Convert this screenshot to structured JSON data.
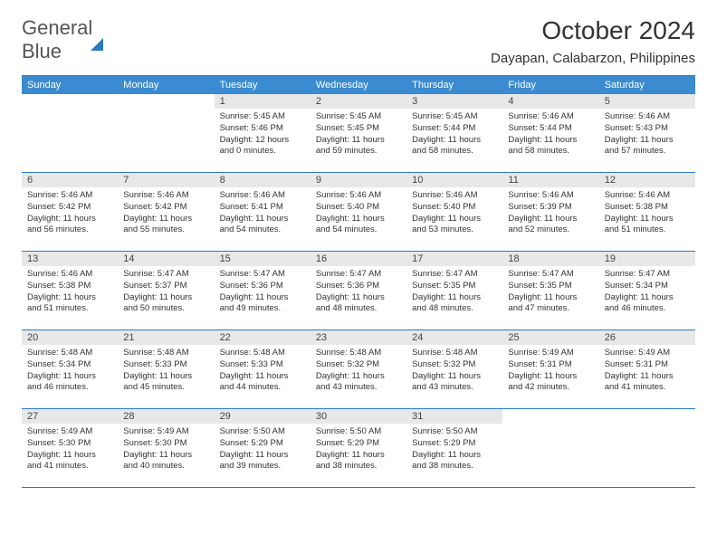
{
  "logo": {
    "word1": "General",
    "word2": "Blue"
  },
  "title": "October 2024",
  "location": "Dayapan, Calabarzon, Philippines",
  "colors": {
    "header_bg": "#3a8bd0",
    "border": "#2d7bc0",
    "daynum_bg": "#e8e8e8",
    "text": "#333333",
    "page_bg": "#ffffff"
  },
  "weekdays": [
    "Sunday",
    "Monday",
    "Tuesday",
    "Wednesday",
    "Thursday",
    "Friday",
    "Saturday"
  ],
  "weeks": [
    [
      {
        "n": "",
        "sr": "",
        "ss": "",
        "dl": ""
      },
      {
        "n": "",
        "sr": "",
        "ss": "",
        "dl": ""
      },
      {
        "n": "1",
        "sr": "Sunrise: 5:45 AM",
        "ss": "Sunset: 5:46 PM",
        "dl": "Daylight: 12 hours and 0 minutes."
      },
      {
        "n": "2",
        "sr": "Sunrise: 5:45 AM",
        "ss": "Sunset: 5:45 PM",
        "dl": "Daylight: 11 hours and 59 minutes."
      },
      {
        "n": "3",
        "sr": "Sunrise: 5:45 AM",
        "ss": "Sunset: 5:44 PM",
        "dl": "Daylight: 11 hours and 58 minutes."
      },
      {
        "n": "4",
        "sr": "Sunrise: 5:46 AM",
        "ss": "Sunset: 5:44 PM",
        "dl": "Daylight: 11 hours and 58 minutes."
      },
      {
        "n": "5",
        "sr": "Sunrise: 5:46 AM",
        "ss": "Sunset: 5:43 PM",
        "dl": "Daylight: 11 hours and 57 minutes."
      }
    ],
    [
      {
        "n": "6",
        "sr": "Sunrise: 5:46 AM",
        "ss": "Sunset: 5:42 PM",
        "dl": "Daylight: 11 hours and 56 minutes."
      },
      {
        "n": "7",
        "sr": "Sunrise: 5:46 AM",
        "ss": "Sunset: 5:42 PM",
        "dl": "Daylight: 11 hours and 55 minutes."
      },
      {
        "n": "8",
        "sr": "Sunrise: 5:46 AM",
        "ss": "Sunset: 5:41 PM",
        "dl": "Daylight: 11 hours and 54 minutes."
      },
      {
        "n": "9",
        "sr": "Sunrise: 5:46 AM",
        "ss": "Sunset: 5:40 PM",
        "dl": "Daylight: 11 hours and 54 minutes."
      },
      {
        "n": "10",
        "sr": "Sunrise: 5:46 AM",
        "ss": "Sunset: 5:40 PM",
        "dl": "Daylight: 11 hours and 53 minutes."
      },
      {
        "n": "11",
        "sr": "Sunrise: 5:46 AM",
        "ss": "Sunset: 5:39 PM",
        "dl": "Daylight: 11 hours and 52 minutes."
      },
      {
        "n": "12",
        "sr": "Sunrise: 5:46 AM",
        "ss": "Sunset: 5:38 PM",
        "dl": "Daylight: 11 hours and 51 minutes."
      }
    ],
    [
      {
        "n": "13",
        "sr": "Sunrise: 5:46 AM",
        "ss": "Sunset: 5:38 PM",
        "dl": "Daylight: 11 hours and 51 minutes."
      },
      {
        "n": "14",
        "sr": "Sunrise: 5:47 AM",
        "ss": "Sunset: 5:37 PM",
        "dl": "Daylight: 11 hours and 50 minutes."
      },
      {
        "n": "15",
        "sr": "Sunrise: 5:47 AM",
        "ss": "Sunset: 5:36 PM",
        "dl": "Daylight: 11 hours and 49 minutes."
      },
      {
        "n": "16",
        "sr": "Sunrise: 5:47 AM",
        "ss": "Sunset: 5:36 PM",
        "dl": "Daylight: 11 hours and 48 minutes."
      },
      {
        "n": "17",
        "sr": "Sunrise: 5:47 AM",
        "ss": "Sunset: 5:35 PM",
        "dl": "Daylight: 11 hours and 48 minutes."
      },
      {
        "n": "18",
        "sr": "Sunrise: 5:47 AM",
        "ss": "Sunset: 5:35 PM",
        "dl": "Daylight: 11 hours and 47 minutes."
      },
      {
        "n": "19",
        "sr": "Sunrise: 5:47 AM",
        "ss": "Sunset: 5:34 PM",
        "dl": "Daylight: 11 hours and 46 minutes."
      }
    ],
    [
      {
        "n": "20",
        "sr": "Sunrise: 5:48 AM",
        "ss": "Sunset: 5:34 PM",
        "dl": "Daylight: 11 hours and 46 minutes."
      },
      {
        "n": "21",
        "sr": "Sunrise: 5:48 AM",
        "ss": "Sunset: 5:33 PM",
        "dl": "Daylight: 11 hours and 45 minutes."
      },
      {
        "n": "22",
        "sr": "Sunrise: 5:48 AM",
        "ss": "Sunset: 5:33 PM",
        "dl": "Daylight: 11 hours and 44 minutes."
      },
      {
        "n": "23",
        "sr": "Sunrise: 5:48 AM",
        "ss": "Sunset: 5:32 PM",
        "dl": "Daylight: 11 hours and 43 minutes."
      },
      {
        "n": "24",
        "sr": "Sunrise: 5:48 AM",
        "ss": "Sunset: 5:32 PM",
        "dl": "Daylight: 11 hours and 43 minutes."
      },
      {
        "n": "25",
        "sr": "Sunrise: 5:49 AM",
        "ss": "Sunset: 5:31 PM",
        "dl": "Daylight: 11 hours and 42 minutes."
      },
      {
        "n": "26",
        "sr": "Sunrise: 5:49 AM",
        "ss": "Sunset: 5:31 PM",
        "dl": "Daylight: 11 hours and 41 minutes."
      }
    ],
    [
      {
        "n": "27",
        "sr": "Sunrise: 5:49 AM",
        "ss": "Sunset: 5:30 PM",
        "dl": "Daylight: 11 hours and 41 minutes."
      },
      {
        "n": "28",
        "sr": "Sunrise: 5:49 AM",
        "ss": "Sunset: 5:30 PM",
        "dl": "Daylight: 11 hours and 40 minutes."
      },
      {
        "n": "29",
        "sr": "Sunrise: 5:50 AM",
        "ss": "Sunset: 5:29 PM",
        "dl": "Daylight: 11 hours and 39 minutes."
      },
      {
        "n": "30",
        "sr": "Sunrise: 5:50 AM",
        "ss": "Sunset: 5:29 PM",
        "dl": "Daylight: 11 hours and 38 minutes."
      },
      {
        "n": "31",
        "sr": "Sunrise: 5:50 AM",
        "ss": "Sunset: 5:29 PM",
        "dl": "Daylight: 11 hours and 38 minutes."
      },
      {
        "n": "",
        "sr": "",
        "ss": "",
        "dl": ""
      },
      {
        "n": "",
        "sr": "",
        "ss": "",
        "dl": ""
      }
    ]
  ]
}
